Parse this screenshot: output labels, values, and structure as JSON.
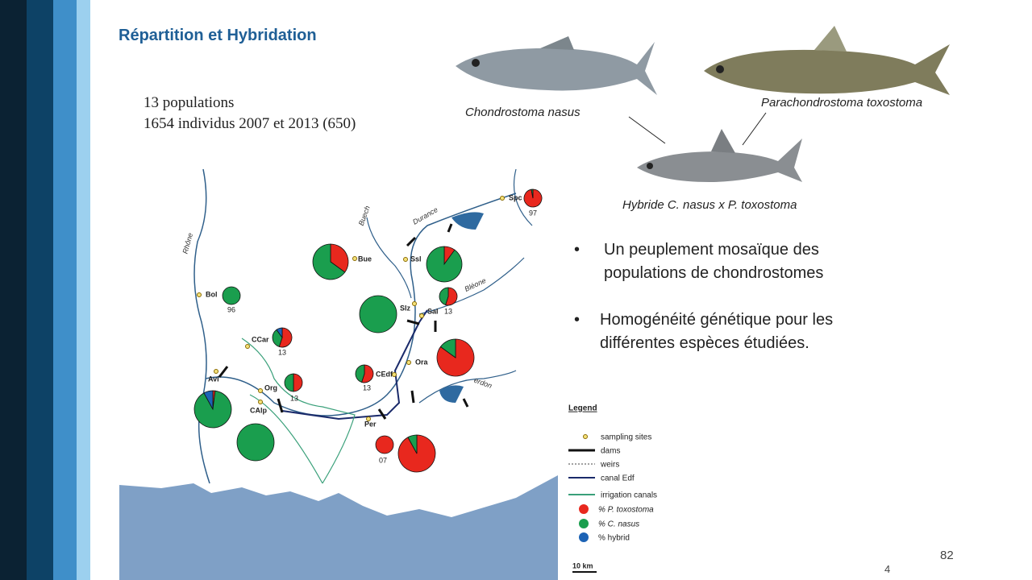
{
  "title": "Répartition et Hybridation",
  "stats": [
    "13 populations",
    "1654 individus 2007 et 2013 (650)"
  ],
  "species": [
    "Chondrostoma nasus",
    "Parachondrostoma toxostoma",
    "Hybride C. nasus x P. toxostoma"
  ],
  "bullets": [
    "Un peuplement mosaïque des populations de chondrostomes",
    "Homogénéité génétique pour les différentes espèces étudiées."
  ],
  "map": {
    "rivers": [
      "Rhône",
      "Buech",
      "Durance",
      "Bléone",
      "erdon"
    ],
    "sites": [
      {
        "label": "Spc",
        "pies": [
          {
            "toxostoma": 97,
            "nasus": 3,
            "hybrid": 0,
            "n": "97"
          }
        ]
      },
      {
        "label": "Bue",
        "pies": [
          {
            "toxostoma": 35,
            "nasus": 65,
            "hybrid": 0
          }
        ]
      },
      {
        "label": "Ssl",
        "pies": [
          {
            "toxostoma": 10,
            "nasus": 90,
            "hybrid": 0
          }
        ]
      },
      {
        "label": "Slz",
        "pies": [
          {
            "toxostoma": 0,
            "nasus": 100,
            "hybrid": 0
          }
        ]
      },
      {
        "label": "Sal",
        "pies": [
          {
            "toxostoma": 55,
            "nasus": 45,
            "hybrid": 0,
            "n": "13"
          }
        ]
      },
      {
        "label": "Bol",
        "pies": [
          {
            "toxostoma": 0,
            "nasus": 100,
            "hybrid": 0,
            "n": "96"
          }
        ]
      },
      {
        "label": "CCar",
        "pies": [
          {
            "toxostoma": 55,
            "nasus": 35,
            "hybrid": 10,
            "n": "13"
          }
        ]
      },
      {
        "label": "Org",
        "pies": [
          {
            "toxostoma": 50,
            "nasus": 50,
            "hybrid": 0,
            "n": "13"
          }
        ]
      },
      {
        "label": "CEdf",
        "pies": [
          {
            "toxostoma": 55,
            "nasus": 45,
            "hybrid": 0,
            "n": "13"
          }
        ]
      },
      {
        "label": "Ora",
        "pies": [
          {
            "toxostoma": 85,
            "nasus": 15,
            "hybrid": 0
          }
        ]
      },
      {
        "label": "Avi",
        "pies": [
          {
            "toxostoma": 2,
            "nasus": 90,
            "hybrid": 8
          }
        ]
      },
      {
        "label": "CAlp",
        "pies": [
          {
            "toxostoma": 0,
            "nasus": 100,
            "hybrid": 0
          }
        ]
      },
      {
        "label": "Per",
        "pies": [
          {
            "toxostoma": 100,
            "nasus": 0,
            "hybrid": 0,
            "n": "07"
          },
          {
            "toxostoma": 92,
            "nasus": 8,
            "hybrid": 0
          }
        ]
      }
    ],
    "scale": "10 km"
  },
  "legend": {
    "title": "Legend",
    "items": [
      "sampling sites",
      "dams",
      "weirs",
      "canal Edf",
      "irrigation canals",
      "% P. toxostoma",
      "% C. nasus",
      "% hybrid"
    ]
  },
  "page_numbers": [
    "82",
    "4"
  ]
}
